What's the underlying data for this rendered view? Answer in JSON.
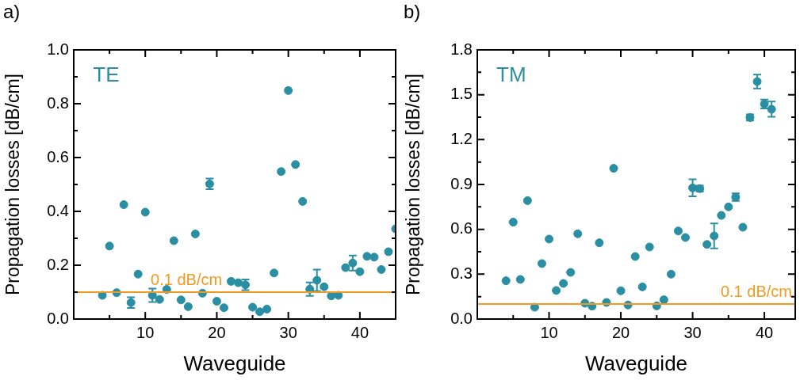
{
  "chart_data": [
    {
      "type": "scatter",
      "title": "a)",
      "xlabel": "Waveguide",
      "ylabel": "Propagation losses [dB/cm]",
      "annotations": [
        "TE"
      ],
      "marker": "circle",
      "grid": false,
      "legend": false,
      "xlim": [
        0,
        45
      ],
      "xticks": [
        {
          "value": 5,
          "label": null
        },
        10,
        {
          "value": 15,
          "label": null
        },
        20,
        {
          "value": 25,
          "label": null
        },
        30,
        {
          "value": 35,
          "label": null
        },
        40
      ],
      "ylim": [
        0,
        1.0
      ],
      "yticks": [
        {
          "value": 0,
          "label": "0.0"
        },
        {
          "value": 0.1,
          "label": null
        },
        0.2,
        {
          "value": 0.3,
          "label": null
        },
        0.4,
        {
          "value": 0.5,
          "label": null
        },
        0.6,
        {
          "value": 0.7,
          "label": null
        },
        0.8,
        {
          "value": 0.9,
          "label": null
        },
        {
          "value": 1.0,
          "label": "1.0"
        }
      ],
      "ref_lines": [
        {
          "axis": "y",
          "value": 0.1,
          "label": "0.1 dB/cm",
          "color": "#f39a1e"
        }
      ],
      "series": [
        {
          "color": "#2a8fa3",
          "x": [
            4,
            5,
            6,
            7,
            8,
            9,
            10,
            11,
            12,
            13,
            14,
            15,
            16,
            17,
            18,
            19,
            20,
            21,
            22,
            23,
            24,
            25,
            26,
            27,
            28,
            29,
            30,
            31,
            32,
            33,
            34,
            35,
            36,
            37,
            38,
            39,
            40,
            41,
            42,
            43,
            44,
            45
          ],
          "values": [
            0.088,
            0.271,
            0.098,
            0.425,
            0.061,
            0.167,
            0.397,
            0.088,
            0.073,
            0.11,
            0.291,
            0.071,
            0.046,
            0.316,
            0.096,
            0.502,
            0.066,
            0.042,
            0.14,
            0.135,
            0.127,
            0.044,
            0.027,
            0.037,
            0.171,
            0.548,
            0.849,
            0.574,
            0.437,
            0.111,
            0.144,
            0.12,
            0.086,
            0.088,
            0.191,
            0.208,
            0.176,
            0.233,
            0.23,
            0.184,
            0.25,
            0.335
          ],
          "errors": [
            null,
            null,
            null,
            null,
            0.02,
            null,
            null,
            0.025,
            null,
            null,
            null,
            null,
            null,
            null,
            null,
            0.02,
            null,
            null,
            null,
            null,
            0.02,
            null,
            null,
            null,
            null,
            null,
            null,
            null,
            null,
            0.025,
            0.04,
            null,
            null,
            null,
            null,
            0.028,
            null,
            null,
            null,
            null,
            null,
            null
          ]
        }
      ]
    },
    {
      "type": "scatter",
      "title": "b)",
      "xlabel": "Waveguide",
      "ylabel": "Propagation losses [dB/cm]",
      "annotations": [
        "TM"
      ],
      "marker": "circle",
      "grid": false,
      "legend": false,
      "xlim": [
        0,
        44.3
      ],
      "xticks": [
        {
          "value": 5,
          "label": null
        },
        10,
        {
          "value": 15,
          "label": null
        },
        20,
        {
          "value": 25,
          "label": null
        },
        30,
        {
          "value": 35,
          "label": null
        },
        40
      ],
      "ylim": [
        0,
        1.8
      ],
      "yticks": [
        {
          "value": 0,
          "label": "0.0"
        },
        {
          "value": 0.15,
          "label": null
        },
        0.3,
        {
          "value": 0.45,
          "label": null
        },
        0.6,
        {
          "value": 0.75,
          "label": null
        },
        0.9,
        {
          "value": 1.05,
          "label": null
        },
        1.2,
        {
          "value": 1.35,
          "label": null
        },
        1.5,
        {
          "value": 1.65,
          "label": null
        },
        1.8
      ],
      "ref_lines": [
        {
          "axis": "y",
          "value": 0.1,
          "label": "0.1 dB/cm",
          "color": "#f39a1e"
        }
      ],
      "series": [
        {
          "color": "#2a8fa3",
          "x": [
            4,
            5,
            6,
            7,
            8,
            9,
            10,
            11,
            12,
            13,
            14,
            15,
            16,
            17,
            18,
            19,
            20,
            21,
            22,
            23,
            24,
            25,
            26,
            27,
            28,
            29,
            30,
            31,
            32,
            33,
            34,
            35,
            36,
            37,
            38,
            39,
            40,
            41
          ],
          "values": [
            0.256,
            0.648,
            0.265,
            0.792,
            0.079,
            0.371,
            0.535,
            0.191,
            0.238,
            0.312,
            0.57,
            0.106,
            0.086,
            0.51,
            0.111,
            1.008,
            0.189,
            0.094,
            0.418,
            0.215,
            0.482,
            0.088,
            0.129,
            0.3,
            0.589,
            0.545,
            0.877,
            0.872,
            0.499,
            0.556,
            0.693,
            0.75,
            0.815,
            0.614,
            1.348,
            1.588,
            1.438,
            1.403
          ],
          "errors": [
            null,
            null,
            null,
            null,
            null,
            null,
            null,
            null,
            null,
            null,
            null,
            null,
            null,
            null,
            null,
            null,
            null,
            null,
            null,
            null,
            null,
            null,
            null,
            null,
            null,
            null,
            0.057,
            0.02,
            null,
            0.083,
            null,
            null,
            0.025,
            null,
            0.02,
            0.046,
            0.03,
            0.051
          ]
        }
      ]
    }
  ]
}
